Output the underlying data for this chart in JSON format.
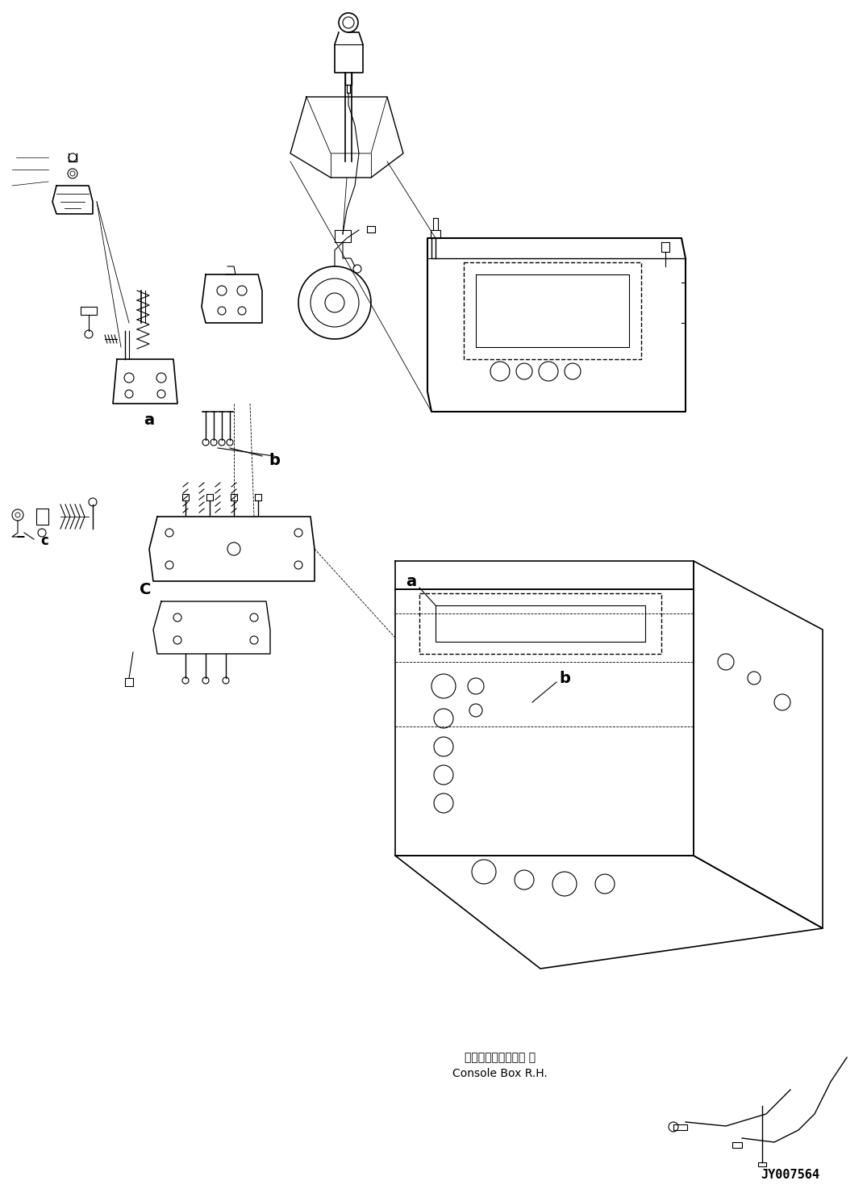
{
  "figure_width": 10.75,
  "figure_height": 14.73,
  "dpi": 100,
  "background_color": "#ffffff",
  "title_color": "#000000",
  "line_color": "#000000",
  "line_width": 0.8,
  "part_number": "JY007564",
  "label_a1": "a",
  "label_b1": "b",
  "label_c1": "c",
  "label_a2": "a",
  "label_b2": "b",
  "label_C": "C",
  "console_box_jp": "コンソールボックス 右",
  "console_box_en": "Console Box R.H."
}
